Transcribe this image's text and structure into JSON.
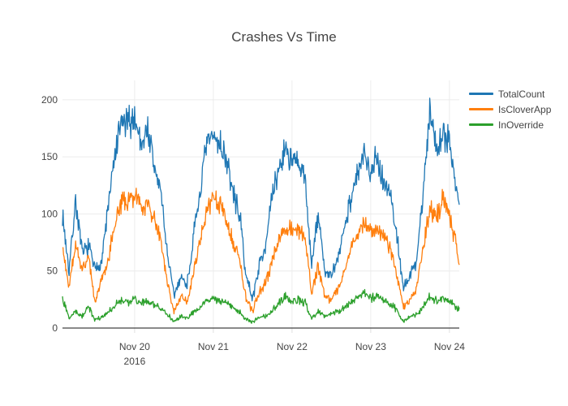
{
  "figure": {
    "background": "#ffffff",
    "font_color": "#444444",
    "grid_color": "#ececec",
    "axis_line_color": "#444444",
    "minor_tick_color": "#e0e0e0"
  },
  "chart_data": {
    "type": "line",
    "title": "Crashes Vs Time",
    "xlabel": "",
    "ylabel": "",
    "x_unit": "hours since Nov 19 2016 00:00",
    "x_start_hour": 2,
    "x_end_hour": 123,
    "keyframe_start_hour": 2,
    "keyframe_step_hours": 2,
    "samples_per_hour": 6,
    "noise_seed": 7,
    "grid": true,
    "legend_position": "top-right",
    "ylim": [
      0,
      217
    ],
    "y_ticks": [
      0,
      50,
      100,
      150,
      200
    ],
    "x_ticks": [
      {
        "hour": 24,
        "label": "Nov 20",
        "sub": "2016"
      },
      {
        "hour": 48,
        "label": "Nov 21",
        "sub": ""
      },
      {
        "hour": 72,
        "label": "Nov 22",
        "sub": ""
      },
      {
        "hour": 96,
        "label": "Nov 23",
        "sub": ""
      },
      {
        "hour": 120,
        "label": "Nov 24",
        "sub": ""
      }
    ],
    "series": [
      {
        "name": "TotalCount",
        "color": "#1f77b4",
        "noise_base": 3,
        "noise_scale": 0.085,
        "keyframes": [
          100,
          50,
          112,
          65,
          72,
          50,
          60,
          108,
          150,
          180,
          178,
          185,
          162,
          175,
          140,
          120,
          65,
          28,
          45,
          38,
          80,
          120,
          160,
          168,
          162,
          148,
          118,
          100,
          45,
          26,
          55,
          75,
          115,
          140,
          158,
          146,
          142,
          130,
          55,
          100,
          50,
          45,
          60,
          90,
          115,
          135,
          150,
          140,
          150,
          128,
          118,
          80,
          35,
          45,
          60,
          120,
          190,
          160,
          170,
          165,
          125,
          90
        ]
      },
      {
        "name": "IsCloverApp",
        "color": "#ff7f0e",
        "noise_base": 2.5,
        "noise_scale": 0.085,
        "keyframes": [
          70,
          35,
          75,
          50,
          62,
          22,
          45,
          60,
          95,
          110,
          108,
          120,
          105,
          112,
          95,
          78,
          40,
          15,
          28,
          22,
          50,
          75,
          105,
          112,
          108,
          95,
          75,
          60,
          25,
          14,
          32,
          40,
          60,
          80,
          88,
          85,
          88,
          80,
          30,
          55,
          28,
          25,
          35,
          50,
          70,
          85,
          90,
          85,
          88,
          80,
          70,
          45,
          18,
          25,
          35,
          70,
          105,
          95,
          115,
          100,
          75,
          38
        ]
      },
      {
        "name": "InOverride",
        "color": "#2ca02c",
        "noise_base": 1.2,
        "noise_scale": 0.13,
        "keyframes": [
          28,
          8,
          15,
          10,
          18,
          7,
          10,
          14,
          20,
          24,
          22,
          26,
          22,
          24,
          20,
          18,
          12,
          6,
          10,
          8,
          14,
          18,
          24,
          26,
          24,
          22,
          18,
          14,
          8,
          5,
          10,
          10,
          15,
          22,
          28,
          24,
          25,
          22,
          8,
          15,
          10,
          12,
          15,
          18,
          24,
          28,
          30,
          26,
          28,
          24,
          22,
          15,
          6,
          10,
          12,
          18,
          28,
          24,
          26,
          24,
          18,
          14
        ]
      }
    ]
  }
}
